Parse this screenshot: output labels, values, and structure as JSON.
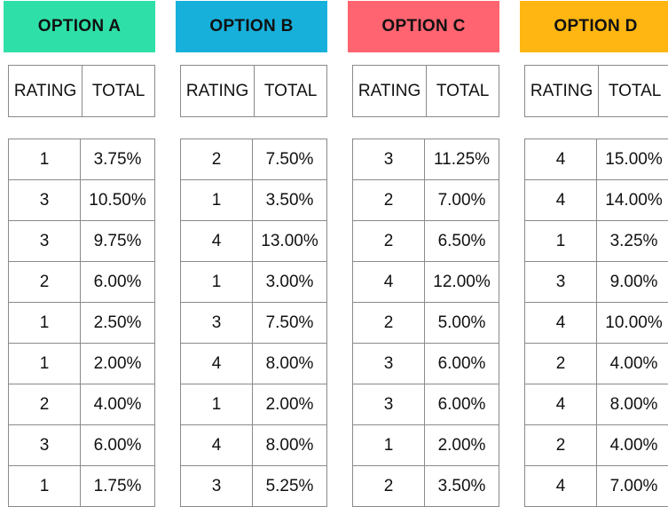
{
  "columns_label": {
    "rating": "RATING",
    "total": "TOTAL"
  },
  "options": [
    {
      "title": "OPTION A",
      "color": "#2EE0A8",
      "rows": [
        {
          "rating": "1",
          "total": "3.75%"
        },
        {
          "rating": "3",
          "total": "10.50%"
        },
        {
          "rating": "3",
          "total": "9.75%"
        },
        {
          "rating": "2",
          "total": "6.00%"
        },
        {
          "rating": "1",
          "total": "2.50%"
        },
        {
          "rating": "1",
          "total": "2.00%"
        },
        {
          "rating": "2",
          "total": "4.00%"
        },
        {
          "rating": "3",
          "total": "6.00%"
        },
        {
          "rating": "1",
          "total": "1.75%"
        }
      ]
    },
    {
      "title": "OPTION B",
      "color": "#17B0DB",
      "rows": [
        {
          "rating": "2",
          "total": "7.50%"
        },
        {
          "rating": "1",
          "total": "3.50%"
        },
        {
          "rating": "4",
          "total": "13.00%"
        },
        {
          "rating": "1",
          "total": "3.00%"
        },
        {
          "rating": "3",
          "total": "7.50%"
        },
        {
          "rating": "4",
          "total": "8.00%"
        },
        {
          "rating": "1",
          "total": "2.00%"
        },
        {
          "rating": "4",
          "total": "8.00%"
        },
        {
          "rating": "3",
          "total": "5.25%"
        }
      ]
    },
    {
      "title": "OPTION C",
      "color": "#FF6470",
      "rows": [
        {
          "rating": "3",
          "total": "11.25%"
        },
        {
          "rating": "2",
          "total": "7.00%"
        },
        {
          "rating": "2",
          "total": "6.50%"
        },
        {
          "rating": "4",
          "total": "12.00%"
        },
        {
          "rating": "2",
          "total": "5.00%"
        },
        {
          "rating": "3",
          "total": "6.00%"
        },
        {
          "rating": "3",
          "total": "6.00%"
        },
        {
          "rating": "1",
          "total": "2.00%"
        },
        {
          "rating": "2",
          "total": "3.50%"
        }
      ]
    },
    {
      "title": "OPTION D",
      "color": "#FFB612",
      "rows": [
        {
          "rating": "4",
          "total": "15.00%"
        },
        {
          "rating": "4",
          "total": "14.00%"
        },
        {
          "rating": "1",
          "total": "3.25%"
        },
        {
          "rating": "3",
          "total": "9.00%"
        },
        {
          "rating": "4",
          "total": "10.00%"
        },
        {
          "rating": "2",
          "total": "4.00%"
        },
        {
          "rating": "4",
          "total": "8.00%"
        },
        {
          "rating": "2",
          "total": "4.00%"
        },
        {
          "rating": "4",
          "total": "7.00%"
        }
      ]
    }
  ]
}
